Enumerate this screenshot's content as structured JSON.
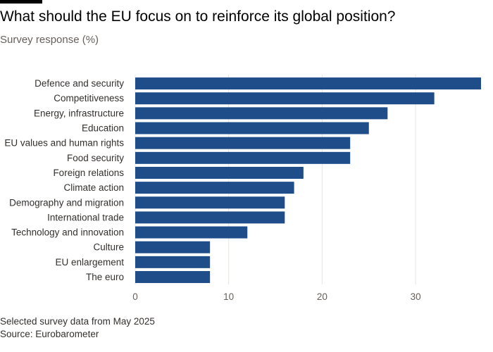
{
  "header": {
    "title": "What should the EU focus on to reinforce its global position?",
    "subtitle": "Survey response (%)"
  },
  "footer": {
    "note": "Selected survey data from May 2025",
    "source": "Source: Eurobarometer"
  },
  "colors": {
    "bar": "#1e4d8a",
    "grid": "#e9e4df"
  },
  "chart_data": {
    "type": "bar",
    "orientation": "horizontal",
    "categories": [
      "Defence and security",
      "Competitiveness",
      "Energy, infrastructure",
      "Education",
      "EU values and human rights",
      "Food security",
      "Foreign relations",
      "Climate action",
      "Demography and migration",
      "International trade",
      "Technology and innovation",
      "Culture",
      "EU enlargement",
      "The euro"
    ],
    "values": [
      37,
      32,
      27,
      25,
      23,
      23,
      18,
      17,
      16,
      16,
      12,
      8,
      8,
      8
    ],
    "xlim": [
      0,
      37
    ],
    "xticks": [
      0,
      10,
      20,
      30
    ],
    "title": "What should the EU focus on to reinforce its global position?",
    "xlabel": "",
    "ylabel": "",
    "unit": "%"
  }
}
